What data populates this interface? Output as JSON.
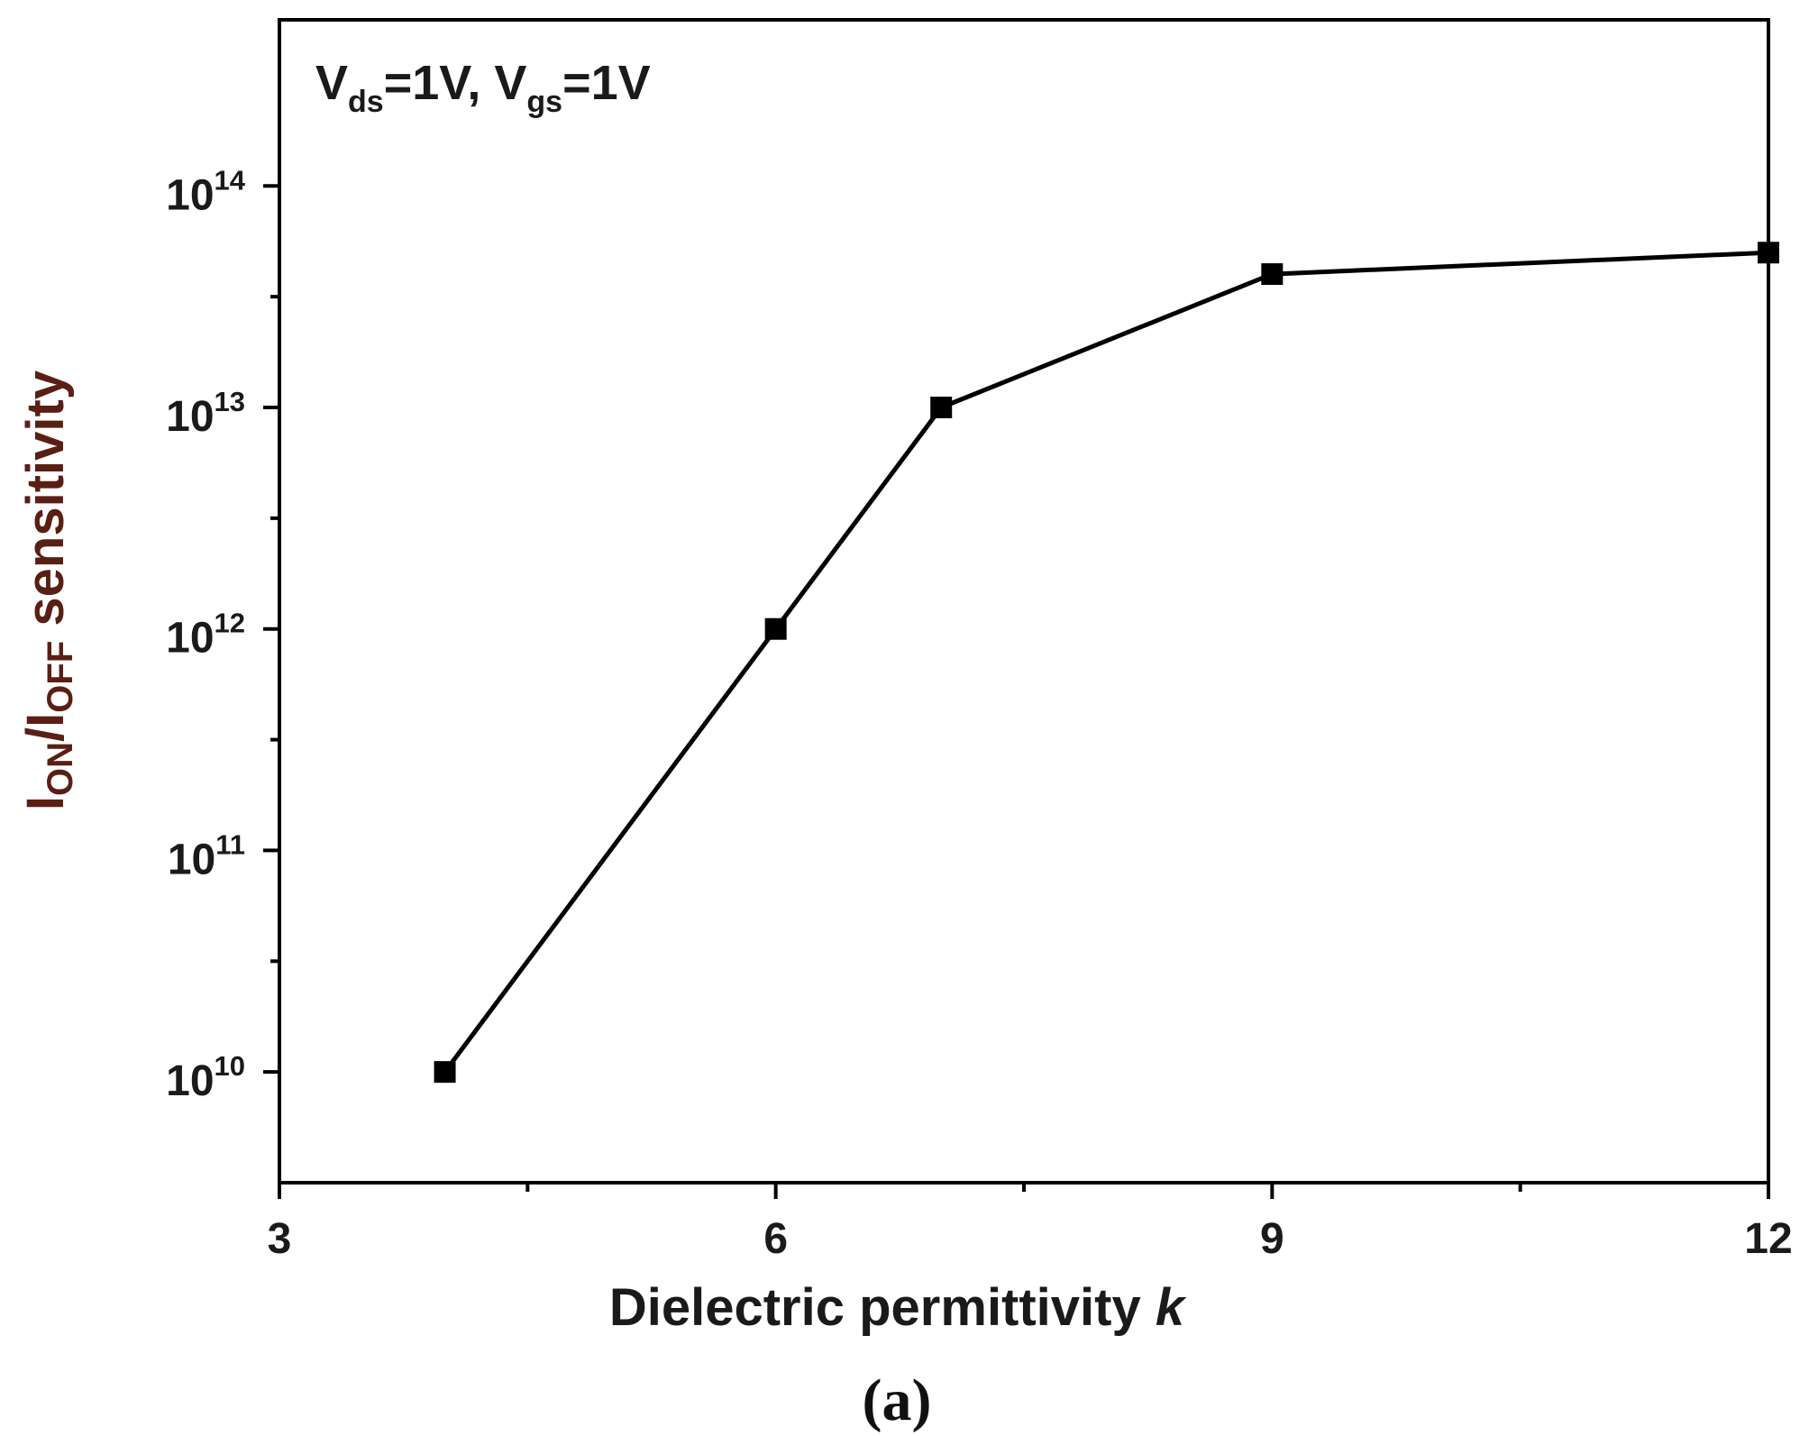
{
  "chart_data": {
    "type": "line",
    "x": [
      4,
      6,
      7,
      9,
      12
    ],
    "series": [
      {
        "values": [
          10000000000.0,
          1000000000000.0,
          10000000000000.0,
          40000000000000.0,
          50000000000000.0
        ]
      }
    ],
    "xlabel": {
      "text": "Dielectric permittivity ",
      "var": "k"
    },
    "ylabel": {
      "i1": "I",
      "s1": "ON",
      "slash": "/I",
      "s2": "OFF",
      "rest": " sensitivity"
    },
    "xlim": [
      3,
      12
    ],
    "ylim_log10": [
      9.5,
      14.75
    ],
    "y_scale": "log",
    "x_ticks": [
      3,
      6,
      9,
      12
    ],
    "x_tick_labels": [
      "3",
      "6",
      "9",
      "12"
    ],
    "y_ticks_exponents": [
      10,
      11,
      12,
      13,
      14
    ],
    "y_tick_base": "10",
    "y_tick_exp_labels": [
      "10",
      "11",
      "12",
      "13",
      "14"
    ],
    "annotation": {
      "v1": "V",
      "s1": "ds",
      "eq1": "=1V, V",
      "s2": "gs",
      "eq2": "=1V"
    },
    "marker": "square",
    "line_color": "#000000",
    "grid": false,
    "caption": "(a)"
  }
}
